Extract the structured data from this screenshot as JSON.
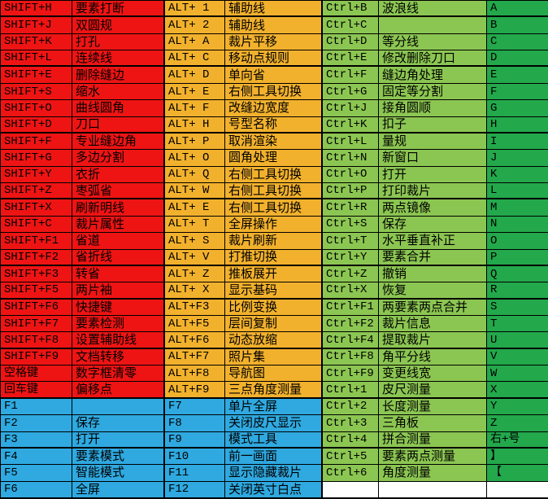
{
  "colors": {
    "red": "#ee1414",
    "amber": "#f2b12d",
    "green_light": "#8cc652",
    "green_dark": "#23a84c",
    "blue": "#2fa9e0",
    "white": "#ffffff",
    "border": "#000000",
    "text": "#000000"
  },
  "table": {
    "rows": [
      {
        "cells": [
          "SHIFT+H",
          "要素打断",
          "ALT+ 1",
          "辅助线",
          "Ctrl+B",
          "波浪线",
          "A"
        ]
      },
      {
        "cells": [
          "SHIFT+J",
          "双圆规",
          "ALT+ 2",
          "辅助线",
          "Ctrl+C",
          "",
          "B"
        ]
      },
      {
        "cells": [
          "SHIFT+K",
          "打孔",
          "ALT+ A",
          "裁片平移",
          "Ctrl+D",
          "等分线",
          "C"
        ]
      },
      {
        "cells": [
          "SHIFT+L",
          "连续线",
          "ALT+ C",
          "移动点规则",
          "Ctrl+E",
          "修改删除刀口",
          "D"
        ]
      },
      {
        "cells": [
          "SHIFT+E",
          "删除缝边",
          "ALT+ D",
          "单向省",
          "Ctrl+F",
          "缝边角处理",
          "E"
        ]
      },
      {
        "cells": [
          "SHIFT+S",
          "缩水",
          "ALT+ E",
          "右侧工具切换",
          "Ctrl+G",
          "固定等分割",
          "F"
        ]
      },
      {
        "cells": [
          "SHIFT+O",
          "曲线圆角",
          "ALT+ F",
          "改缝边宽度",
          "Ctrl+J",
          "接角圆顺",
          "G"
        ]
      },
      {
        "cells": [
          "SHIFT+D",
          "刀口",
          "ALT+ H",
          "号型名称",
          "Ctrl+K",
          "扣子",
          "H"
        ]
      },
      {
        "cells": [
          "SHIFT+F",
          "专业缝边角",
          "ALT+ P",
          "取消渲染",
          "Ctrl+L",
          "量规",
          "I"
        ]
      },
      {
        "cells": [
          "SHIFT+G",
          "多边分割",
          "ALT+ O",
          "圆角处理",
          "Ctrl+N",
          "新窗口",
          "J"
        ]
      },
      {
        "cells": [
          "SHIFT+Y",
          "衣折",
          "ALT+ Q",
          "右侧工具切换",
          "Ctrl+O",
          "打开",
          "K"
        ]
      },
      {
        "cells": [
          "SHIFT+Z",
          "枣弧省",
          "ALT+ W",
          "右侧工具切换",
          "Ctrl+P",
          "打印裁片",
          "L"
        ]
      },
      {
        "cells": [
          "SHIFT+X",
          "刷新明线",
          "ALT+ E",
          "右侧工具切换",
          "Ctrl+R",
          "两点镜像",
          "M"
        ]
      },
      {
        "cells": [
          "SHIFT+C",
          "裁片属性",
          "ALT+ T",
          "全屏操作",
          "Ctrl+S",
          "保存",
          "N"
        ]
      },
      {
        "cells": [
          "SHIFT+F1",
          "省道",
          "ALT+ S",
          "裁片刷新",
          "Ctrl+T",
          "水平垂直补正",
          "O"
        ]
      },
      {
        "cells": [
          "SHIFT+F2",
          "省折线",
          "ALT+ V",
          "打推切换",
          "Ctrl+Y",
          "要素合并",
          "P"
        ]
      },
      {
        "cells": [
          "SHIFT+F3",
          "转省",
          "ALT+ Z",
          "推板展开",
          "Ctrl+Z",
          "撤销",
          "Q"
        ]
      },
      {
        "cells": [
          "SHIFT+F5",
          "两片袖",
          "ALT+ X",
          "显示基码",
          "Ctrl+X",
          "恢复",
          "R"
        ]
      },
      {
        "cells": [
          "SHIFT+F6",
          "快捷键",
          "ALT+F3",
          "比例变换",
          "Ctrl+F1",
          "两要素两点合并",
          "S"
        ]
      },
      {
        "cells": [
          "SHIFT+F7",
          "要素检测",
          "ALT+F5",
          "层间复制",
          "Ctrl+F2",
          "裁片信息",
          "T"
        ]
      },
      {
        "cells": [
          "SHIFT+F8",
          "设置辅助线",
          "ALT+F6",
          "动态放缩",
          "Ctrl+F4",
          "提取裁片",
          "U"
        ]
      },
      {
        "cells": [
          "SHIFT+F9",
          "文档转移",
          "ALT+F7",
          "照片集",
          "Ctrl+F8",
          "角平分线",
          "V"
        ]
      },
      {
        "cells": [
          "空格键",
          "数字框清零",
          "ALT+F8",
          "导航图",
          "Ctrl+F9",
          "变更线宽",
          "W"
        ]
      },
      {
        "cells": [
          "回车键",
          "偏移点",
          "ALT+F9",
          "三点角度测量",
          "Ctrl+1",
          "皮尺测量",
          "X"
        ]
      },
      {
        "cells": [
          "F1",
          "",
          "F7",
          "单片全屏",
          "Ctrl+2",
          "长度测量",
          "Y"
        ]
      },
      {
        "cells": [
          "F2",
          "保存",
          "F8",
          "关闭皮尺显示",
          "Ctrl+3",
          "三角板",
          "Z"
        ]
      },
      {
        "cells": [
          "F3",
          "打开",
          "F9",
          "模式工具",
          "Ctrl+4",
          "拼合测量",
          "右+号"
        ]
      },
      {
        "cells": [
          "F4",
          "要素模式",
          "F10",
          "前一画面",
          "Ctrl+5",
          "要素两点测量",
          "】"
        ]
      },
      {
        "cells": [
          "F5",
          "智能模式",
          "F11",
          "显示隐藏裁片",
          "Ctrl+6",
          "角度测量",
          "【"
        ]
      },
      {
        "cells": [
          "F6",
          "全屏",
          "F12",
          "关闭英寸白点",
          "",
          "",
          ""
        ]
      }
    ]
  }
}
